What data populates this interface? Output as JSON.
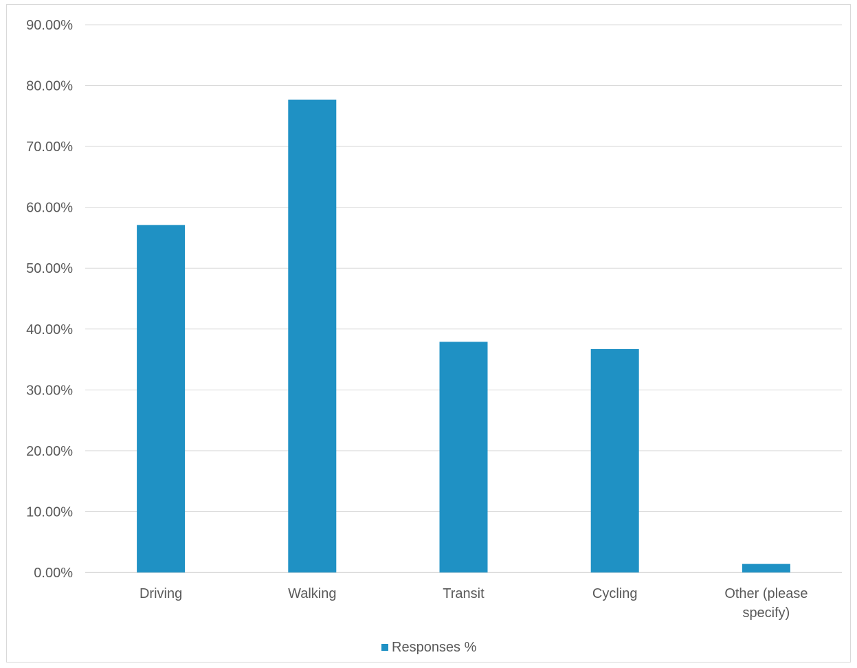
{
  "chart_data": {
    "type": "bar",
    "title": "",
    "xlabel": "",
    "ylabel": "",
    "categories": [
      "Driving",
      "Walking",
      "Transit",
      "Cycling",
      "Other (please specify)"
    ],
    "series": [
      {
        "name": "Responses %",
        "values": [
          57.1,
          77.7,
          37.9,
          36.7,
          1.4
        ],
        "color": "#1f91c4"
      }
    ],
    "ylim": [
      0,
      90
    ],
    "ytick_labels": [
      "0.00%",
      "10.00%",
      "20.00%",
      "30.00%",
      "40.00%",
      "50.00%",
      "60.00%",
      "70.00%",
      "80.00%",
      "90.00%"
    ],
    "grid": true,
    "legend_position": "bottom-center"
  }
}
